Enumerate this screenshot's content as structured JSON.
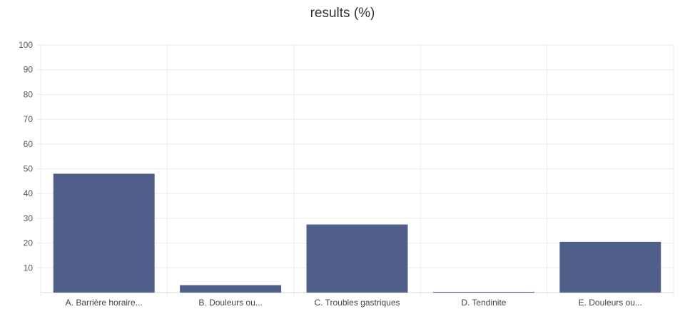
{
  "chart_data": {
    "type": "bar",
    "title": "results (%)",
    "categories": [
      "A. Barrière horaire...",
      "B. Douleurs ou...",
      "C. Troubles gastriques",
      "D. Tendinite",
      "E. Douleurs ou..."
    ],
    "values": [
      48,
      3,
      27.5,
      0.3,
      20.5
    ],
    "ylim": [
      0,
      100
    ],
    "yticks": [
      "10",
      "20",
      "30",
      "40",
      "50",
      "60",
      "70",
      "80",
      "90",
      "100"
    ],
    "grid": true,
    "bar_color": "#505f8a"
  }
}
